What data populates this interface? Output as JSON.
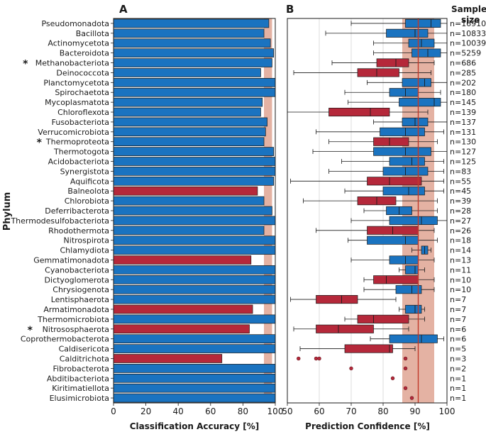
{
  "figure": {
    "panel_a_letter": "A",
    "panel_b_letter": "B",
    "ylabel": "Phylum",
    "sample_size_header": [
      "Sample",
      "size"
    ],
    "marker": "*"
  },
  "colors": {
    "blue": "#1a73c0",
    "red": "#b5283a",
    "band": "#e4b2a3",
    "refline": "#c0392b",
    "edge": "#1a1a1a"
  },
  "chart_data": [
    {
      "type": "bar",
      "panel": "A",
      "orientation": "horizontal",
      "xlabel": "Classification Accuracy [%]",
      "xlim": [
        0,
        100
      ],
      "xticks": [
        0,
        20,
        40,
        60,
        80,
        100
      ],
      "reference_band": [
        93,
        98
      ],
      "categories": [
        "Pseudomonadota",
        "Bacillota",
        "Actinomycetota",
        "Bacteroidota",
        "Methanobacteriota",
        "Deinococcota",
        "Planctomycetota",
        "Spirochaetota",
        "Mycoplasmatota",
        "Chloroflexota",
        "Fusobacteriota",
        "Verrucomicrobiota",
        "Thermoproteota",
        "Thermotogota",
        "Acidobacteriota",
        "Synergistota",
        "Aquificota",
        "Balneolota",
        "Chlorobiota",
        "Deferribacterota",
        "Thermodesulfobacteriota",
        "Rhodothermota",
        "Nitrospirota",
        "Chlamydiota",
        "Gemmatimonadota",
        "Cyanobacteriota",
        "Dictyoglomerota",
        "Chrysiogenota",
        "Lentisphaerota",
        "Armatimonadota",
        "Thermomicrobiota",
        "Nitrososphaerota",
        "Coprothermobacterota",
        "Caldisericota",
        "Calditrichota",
        "Fibrobacterota",
        "Abditibacteriota",
        "Kiritimatiellota",
        "Elusimicrobiota"
      ],
      "marked": [
        "Methanobacteriota",
        "Thermoproteota",
        "Nitrososphaerota"
      ],
      "values": [
        96,
        93,
        97,
        99,
        98,
        91,
        100,
        100,
        92,
        91,
        95,
        94,
        93,
        99,
        100,
        100,
        99,
        89,
        93,
        98,
        100,
        93,
        100,
        100,
        85,
        100,
        100,
        100,
        100,
        86,
        100,
        84,
        100,
        100,
        67,
        100,
        100,
        100,
        100
      ],
      "colors": [
        "blue",
        "blue",
        "blue",
        "blue",
        "blue",
        "blue",
        "blue",
        "blue",
        "blue",
        "blue",
        "blue",
        "blue",
        "blue",
        "blue",
        "blue",
        "blue",
        "blue",
        "red",
        "blue",
        "blue",
        "blue",
        "blue",
        "blue",
        "blue",
        "red",
        "blue",
        "blue",
        "blue",
        "blue",
        "red",
        "blue",
        "red",
        "blue",
        "blue",
        "red",
        "blue",
        "blue",
        "blue",
        "blue"
      ]
    },
    {
      "type": "boxplot",
      "panel": "B",
      "orientation": "horizontal",
      "xlabel": "Prediction Confidence [%]",
      "xlim": [
        50,
        100
      ],
      "xticks": [
        50,
        60,
        70,
        80,
        90,
        100
      ],
      "grid": "vertical",
      "reference_band": [
        86,
        96
      ],
      "reference_line": 91,
      "boxes": [
        {
          "whislo": 70,
          "q1": 87,
          "med": 95,
          "q3": 98,
          "whishi": 100,
          "fliers": [],
          "color": "blue"
        },
        {
          "whislo": 62,
          "q1": 81,
          "med": 90,
          "q3": 94,
          "whishi": 100,
          "fliers": [],
          "color": "blue"
        },
        {
          "whislo": 77,
          "q1": 88,
          "med": 92,
          "q3": 96,
          "whishi": 100,
          "fliers": [],
          "color": "blue"
        },
        {
          "whislo": 77,
          "q1": 89,
          "med": 94,
          "q3": 98,
          "whishi": 100,
          "fliers": [],
          "color": "blue"
        },
        {
          "whislo": 64,
          "q1": 78,
          "med": 84,
          "q3": 88,
          "whishi": 96,
          "fliers": [],
          "color": "red"
        },
        {
          "whislo": 52,
          "q1": 72,
          "med": 78,
          "q3": 85,
          "whishi": 95,
          "fliers": [],
          "color": "red"
        },
        {
          "whislo": 75,
          "q1": 86,
          "med": 93,
          "q3": 95,
          "whishi": 100,
          "fliers": [],
          "color": "blue"
        },
        {
          "whislo": 68,
          "q1": 82,
          "med": 87,
          "q3": 91,
          "whishi": 98,
          "fliers": [],
          "color": "blue"
        },
        {
          "whislo": 69,
          "q1": 85,
          "med": 96,
          "q3": 98,
          "whishi": 100,
          "fliers": [],
          "color": "blue"
        },
        {
          "whislo": 50,
          "q1": 63,
          "med": 76,
          "q3": 82,
          "whishi": 94,
          "fliers": [],
          "color": "red"
        },
        {
          "whislo": 77,
          "q1": 86,
          "med": 90,
          "q3": 94,
          "whishi": 100,
          "fliers": [],
          "color": "blue"
        },
        {
          "whislo": 59,
          "q1": 79,
          "med": 87,
          "q3": 93,
          "whishi": 99,
          "fliers": [],
          "color": "blue"
        },
        {
          "whislo": 63,
          "q1": 77,
          "med": 82,
          "q3": 88,
          "whishi": 97,
          "fliers": [],
          "color": "red"
        },
        {
          "whislo": 58,
          "q1": 77,
          "med": 87,
          "q3": 95,
          "whishi": 100,
          "fliers": [],
          "color": "blue"
        },
        {
          "whislo": 67,
          "q1": 82,
          "med": 89,
          "q3": 93,
          "whishi": 99,
          "fliers": [],
          "color": "blue"
        },
        {
          "whislo": 63,
          "q1": 80,
          "med": 87,
          "q3": 94,
          "whishi": 99,
          "fliers": [],
          "color": "blue"
        },
        {
          "whislo": 51,
          "q1": 75,
          "med": 82,
          "q3": 92,
          "whishi": 99,
          "fliers": [],
          "color": "red"
        },
        {
          "whislo": 68,
          "q1": 80,
          "med": 88,
          "q3": 93,
          "whishi": 99,
          "fliers": [],
          "color": "blue"
        },
        {
          "whislo": 55,
          "q1": 72,
          "med": 78,
          "q3": 84,
          "whishi": 97,
          "fliers": [],
          "color": "red"
        },
        {
          "whislo": 74,
          "q1": 81,
          "med": 85,
          "q3": 89,
          "whishi": 97,
          "fliers": [],
          "color": "blue"
        },
        {
          "whislo": 70,
          "q1": 82,
          "med": 92,
          "q3": 97,
          "whishi": 100,
          "fliers": [],
          "color": "blue"
        },
        {
          "whislo": 59,
          "q1": 75,
          "med": 83,
          "q3": 91,
          "whishi": 96,
          "fliers": [],
          "color": "red"
        },
        {
          "whislo": 69,
          "q1": 75,
          "med": 87,
          "q3": 91,
          "whishi": 97,
          "fliers": [],
          "color": "blue"
        },
        {
          "whislo": 89,
          "q1": 92,
          "med": 93,
          "q3": 94,
          "whishi": 95,
          "fliers": [],
          "color": "blue"
        },
        {
          "whislo": 70,
          "q1": 82,
          "med": 87,
          "q3": 91,
          "whishi": 96,
          "fliers": [],
          "color": "blue"
        },
        {
          "whislo": 85,
          "q1": 87,
          "med": 90,
          "q3": 91,
          "whishi": 93,
          "fliers": [],
          "color": "blue"
        },
        {
          "whislo": 74,
          "q1": 77,
          "med": 81,
          "q3": 91,
          "whishi": 96,
          "fliers": [],
          "color": "red"
        },
        {
          "whislo": 74,
          "q1": 84,
          "med": 89,
          "q3": 92,
          "whishi": 96,
          "fliers": [],
          "color": "blue"
        },
        {
          "whislo": 51,
          "q1": 59,
          "med": 67,
          "q3": 72,
          "whishi": 84,
          "fliers": [],
          "color": "red"
        },
        {
          "whislo": 85,
          "q1": 87,
          "med": 90,
          "q3": 92,
          "whishi": 93,
          "fliers": [],
          "color": "blue"
        },
        {
          "whislo": 68,
          "q1": 72,
          "med": 77,
          "q3": 88,
          "whishi": 93,
          "fliers": [],
          "color": "red"
        },
        {
          "whislo": 52,
          "q1": 59,
          "med": 66,
          "q3": 77,
          "whishi": 88,
          "fliers": [],
          "color": "red"
        },
        {
          "whislo": 76,
          "q1": 82,
          "med": 92,
          "q3": 97,
          "whishi": 99,
          "fliers": [],
          "color": "blue"
        },
        {
          "whislo": 54,
          "q1": 68,
          "med": 82,
          "q3": 83,
          "whishi": 90,
          "fliers": [],
          "color": "red"
        },
        {
          "whislo": null,
          "q1": null,
          "med": null,
          "q3": null,
          "whishi": null,
          "fliers": [
            53.5,
            59,
            60,
            87
          ],
          "color": "red"
        },
        {
          "whislo": null,
          "q1": null,
          "med": null,
          "q3": null,
          "whishi": null,
          "fliers": [
            70,
            87
          ],
          "color": "red"
        },
        {
          "whislo": null,
          "q1": null,
          "med": null,
          "q3": null,
          "whishi": null,
          "fliers": [
            83
          ],
          "color": "red"
        },
        {
          "whislo": null,
          "q1": null,
          "med": null,
          "q3": null,
          "whishi": null,
          "fliers": [
            87
          ],
          "color": "red"
        },
        {
          "whislo": null,
          "q1": null,
          "med": null,
          "q3": null,
          "whishi": null,
          "fliers": [
            89
          ],
          "color": "red"
        }
      ],
      "sample_sizes": [
        "n=16910",
        "n=10833",
        "n=10039",
        "n=5259",
        "n=686",
        "n=285",
        "n=202",
        "n=180",
        "n=145",
        "n=139",
        "n=137",
        "n=131",
        "n=130",
        "n=127",
        "n=125",
        "n=83",
        "n=55",
        "n=45",
        "n=39",
        "n=28",
        "n=27",
        "n=26",
        "n=18",
        "n=14",
        "n=13",
        "n=11",
        "n=10",
        "n=10",
        "n=7",
        "n=7",
        "n=7",
        "n=6",
        "n=6",
        "n=5",
        "n=3",
        "n=2",
        "n=1",
        "n=1",
        "n=1"
      ]
    }
  ]
}
